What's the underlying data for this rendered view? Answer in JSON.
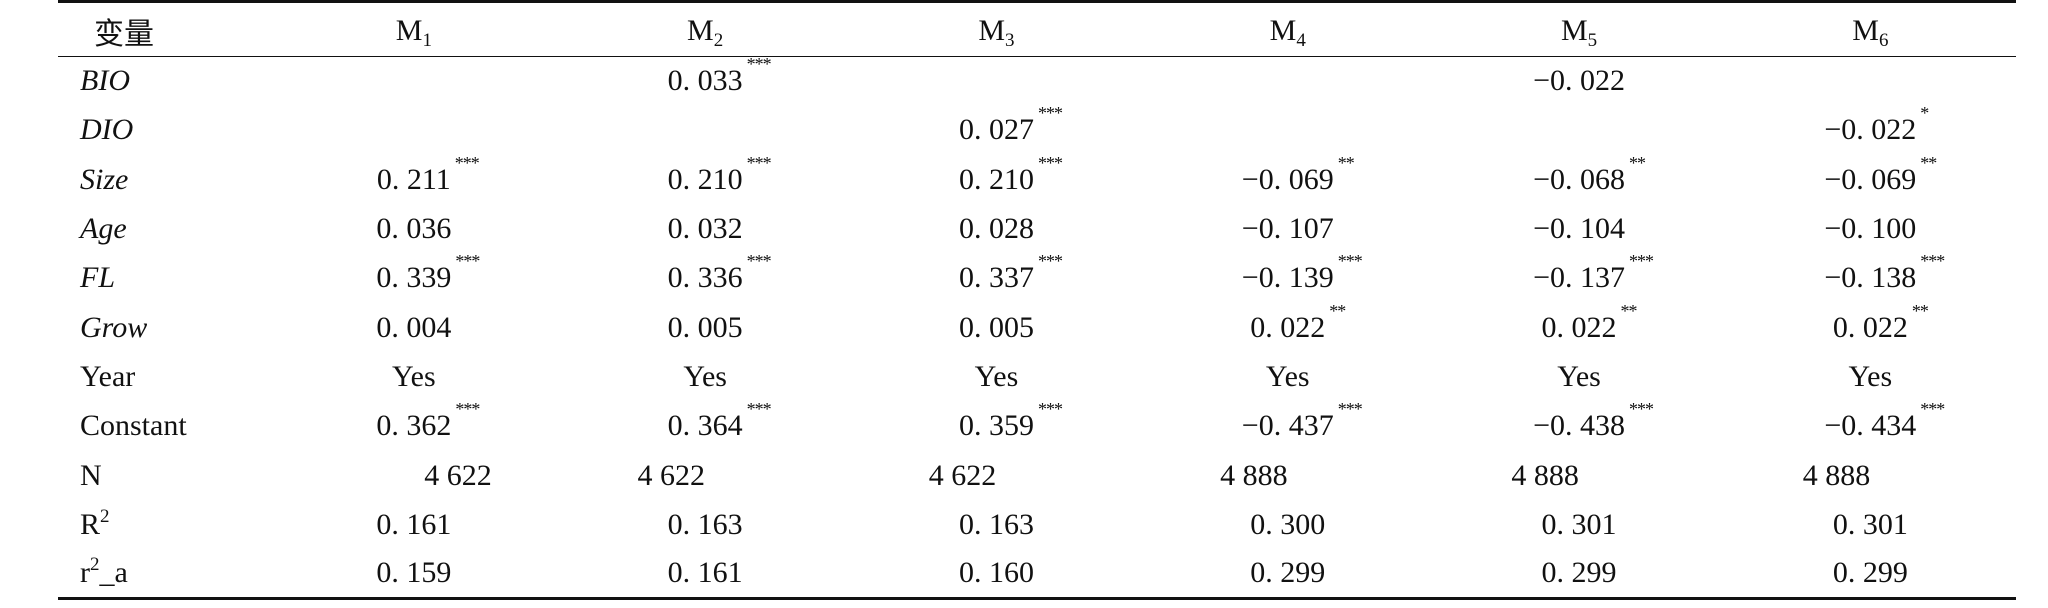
{
  "table": {
    "header": {
      "var_label": "变量",
      "models": [
        {
          "base": "M",
          "sub": "1"
        },
        {
          "base": "M",
          "sub": "2"
        },
        {
          "base": "M",
          "sub": "3"
        },
        {
          "base": "M",
          "sub": "4"
        },
        {
          "base": "M",
          "sub": "5"
        },
        {
          "base": "M",
          "sub": "6"
        }
      ]
    },
    "rows": [
      {
        "label": "BIO",
        "italic": true,
        "cells": [
          {
            "v": "",
            "s": ""
          },
          {
            "v": "0. 033",
            "s": "***"
          },
          {
            "v": "",
            "s": ""
          },
          {
            "v": "",
            "s": ""
          },
          {
            "v": "−0. 022",
            "s": ""
          },
          {
            "v": "",
            "s": ""
          }
        ]
      },
      {
        "label": "DIO",
        "italic": true,
        "cells": [
          {
            "v": "",
            "s": ""
          },
          {
            "v": "",
            "s": ""
          },
          {
            "v": "0. 027",
            "s": "***"
          },
          {
            "v": "",
            "s": ""
          },
          {
            "v": "",
            "s": ""
          },
          {
            "v": "−0. 022",
            "s": "*"
          }
        ]
      },
      {
        "label": "Size",
        "italic": true,
        "cells": [
          {
            "v": "0. 211",
            "s": "***"
          },
          {
            "v": "0. 210",
            "s": "***"
          },
          {
            "v": "0. 210",
            "s": "***"
          },
          {
            "v": "−0. 069",
            "s": "**"
          },
          {
            "v": "−0. 068",
            "s": "**"
          },
          {
            "v": "−0. 069",
            "s": "**"
          }
        ]
      },
      {
        "label": "Age",
        "italic": true,
        "cells": [
          {
            "v": "0. 036",
            "s": ""
          },
          {
            "v": "0. 032",
            "s": ""
          },
          {
            "v": "0. 028",
            "s": ""
          },
          {
            "v": "−0. 107",
            "s": ""
          },
          {
            "v": "−0. 104",
            "s": ""
          },
          {
            "v": "−0. 100",
            "s": ""
          }
        ]
      },
      {
        "label": "FL",
        "italic": true,
        "cells": [
          {
            "v": "0. 339",
            "s": "***"
          },
          {
            "v": "0. 336",
            "s": "***"
          },
          {
            "v": "0. 337",
            "s": "***"
          },
          {
            "v": "−0. 139",
            "s": "***"
          },
          {
            "v": "−0. 137",
            "s": "***"
          },
          {
            "v": "−0. 138",
            "s": "***"
          }
        ]
      },
      {
        "label": "Grow",
        "italic": true,
        "cells": [
          {
            "v": "0. 004",
            "s": ""
          },
          {
            "v": "0. 005",
            "s": ""
          },
          {
            "v": "0. 005",
            "s": ""
          },
          {
            "v": "0. 022",
            "s": "**"
          },
          {
            "v": "0. 022",
            "s": "**"
          },
          {
            "v": "0. 022",
            "s": "**"
          }
        ]
      },
      {
        "label": "Year",
        "italic": false,
        "cells": [
          {
            "v": "Yes",
            "s": ""
          },
          {
            "v": "Yes",
            "s": ""
          },
          {
            "v": "Yes",
            "s": ""
          },
          {
            "v": "Yes",
            "s": ""
          },
          {
            "v": "Yes",
            "s": ""
          },
          {
            "v": "Yes",
            "s": ""
          }
        ]
      },
      {
        "label": "Constant",
        "italic": false,
        "cells": [
          {
            "v": "0. 362",
            "s": "***"
          },
          {
            "v": "0. 364",
            "s": "***"
          },
          {
            "v": "0. 359",
            "s": "***"
          },
          {
            "v": "−0. 437",
            "s": "***"
          },
          {
            "v": "−0. 438",
            "s": "***"
          },
          {
            "v": "−0. 434",
            "s": "***"
          }
        ]
      },
      {
        "label": "N",
        "italic": false,
        "n_row": true,
        "cells": [
          {
            "v": "4 622",
            "s": ""
          },
          {
            "v": "4 622",
            "s": ""
          },
          {
            "v": "4 622",
            "s": ""
          },
          {
            "v": "4 888",
            "s": ""
          },
          {
            "v": "4 888",
            "s": ""
          },
          {
            "v": "4 888",
            "s": ""
          }
        ]
      },
      {
        "label": "R",
        "label_sup": "2",
        "italic": false,
        "cells": [
          {
            "v": "0. 161",
            "s": ""
          },
          {
            "v": "0. 163",
            "s": ""
          },
          {
            "v": "0. 163",
            "s": ""
          },
          {
            "v": "0. 300",
            "s": ""
          },
          {
            "v": "0. 301",
            "s": ""
          },
          {
            "v": "0. 301",
            "s": ""
          }
        ]
      },
      {
        "label": "r",
        "label_sup": "2",
        "label_suffix": "_a",
        "italic": false,
        "cells": [
          {
            "v": "0. 159",
            "s": ""
          },
          {
            "v": "0. 161",
            "s": ""
          },
          {
            "v": "0. 160",
            "s": ""
          },
          {
            "v": "0. 299",
            "s": ""
          },
          {
            "v": "0. 299",
            "s": ""
          },
          {
            "v": "0. 299",
            "s": ""
          }
        ]
      }
    ]
  }
}
